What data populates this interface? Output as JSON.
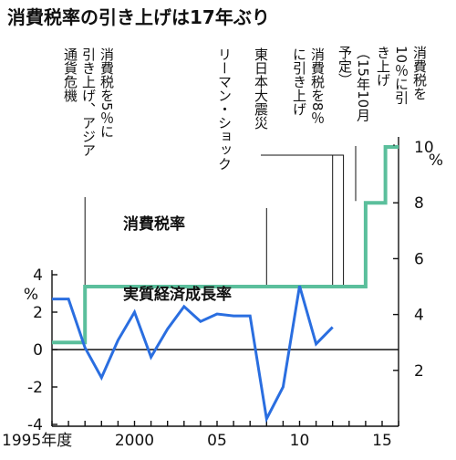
{
  "chart_data": {
    "type": "line",
    "title": "消費税率の引き上げは17年ぶり",
    "x": {
      "ticks": [
        {
          "year": 1995,
          "label": "1995年度"
        },
        {
          "year": 2000,
          "label": "2000"
        },
        {
          "year": 2005,
          "label": "05"
        },
        {
          "year": 2010,
          "label": "10"
        },
        {
          "year": 2015,
          "label": "15"
        }
      ]
    },
    "left_axis": {
      "unit_label": "%",
      "ticks": [
        4,
        2,
        0,
        -2,
        -4
      ],
      "range": [
        -4,
        4
      ]
    },
    "right_axis": {
      "unit_label": "%",
      "ticks": [
        2,
        4,
        6,
        8,
        10
      ],
      "range": [
        2,
        10
      ]
    },
    "series": [
      {
        "name": "消費税率",
        "axis": "right",
        "color": "#5bbf9c",
        "step": true,
        "points": [
          [
            1995,
            3
          ],
          [
            1996,
            3
          ],
          [
            1997,
            5
          ],
          [
            2013,
            5
          ],
          [
            2014,
            8
          ],
          [
            2015,
            8
          ],
          [
            2015.2,
            10
          ],
          [
            2016,
            10
          ]
        ]
      },
      {
        "name": "実質経済成長率",
        "axis": "left",
        "color": "#2a6ee0",
        "step": false,
        "points": [
          [
            1995,
            2.7
          ],
          [
            1996,
            2.7
          ],
          [
            1997,
            0.1
          ],
          [
            1998,
            -1.5
          ],
          [
            1999,
            0.5
          ],
          [
            2000,
            2.0
          ],
          [
            2001,
            -0.4
          ],
          [
            2002,
            1.1
          ],
          [
            2003,
            2.3
          ],
          [
            2004,
            1.5
          ],
          [
            2005,
            1.9
          ],
          [
            2006,
            1.8
          ],
          [
            2007,
            1.8
          ],
          [
            2008,
            -3.7
          ],
          [
            2009,
            -2.0
          ],
          [
            2010,
            3.4
          ],
          [
            2011,
            0.3
          ],
          [
            2012,
            1.2
          ]
        ]
      }
    ],
    "annotations": [
      {
        "year": 1997,
        "lines": [
          "消費税を5％に",
          "引き上げ、アジア",
          "通貨危機"
        ]
      },
      {
        "year": 2008,
        "lines": [
          "リーマン・ショック"
        ]
      },
      {
        "year": 2011,
        "lines": [
          "東日本大震災"
        ]
      },
      {
        "year": 2012,
        "lines": [
          "消費税を8％",
          "に引き上げ"
        ]
      },
      {
        "year": 2014,
        "lines": [
          "（15年10月",
          "予定）"
        ]
      },
      {
        "year": 2015,
        "lines": [
          "消費税を",
          "10％に引",
          "き上げ"
        ]
      }
    ]
  }
}
